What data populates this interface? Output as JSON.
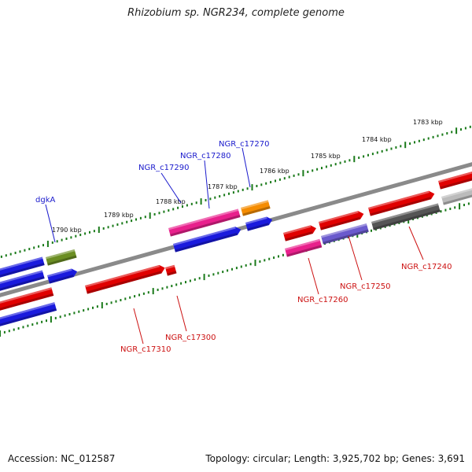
{
  "title": "Rhizobium sp. NGR234, complete genome",
  "footer": {
    "accession": "Accession: NC_012587",
    "topology": "Topology: circular; Length: 3,925,702 bp; Genes: 3,691"
  },
  "colors": {
    "backbone": "#8a8a8a",
    "tick": "#1a7a1a",
    "label_forward": "#1a1acc",
    "label_reverse": "#cc1111"
  },
  "ticks": [
    {
      "label": "1783 kbp"
    },
    {
      "label": "1784 kbp"
    },
    {
      "label": "1785 kbp"
    },
    {
      "label": "1786 kbp"
    },
    {
      "label": "1787 kbp"
    },
    {
      "label": "1788 kbp"
    },
    {
      "label": "1789 kbp"
    },
    {
      "label": "1790 kbp"
    }
  ],
  "genes": [
    {
      "label": "NGR_c17270",
      "strand": "forward",
      "color": "#f58c00"
    },
    {
      "label": "NGR_c17280",
      "strand": "forward",
      "color": "#e8208c"
    },
    {
      "label": "NGR_c17290",
      "strand": "forward",
      "color": "#e8208c"
    },
    {
      "label": "dgkA",
      "strand": "forward",
      "color": "#6b8e23"
    },
    {
      "label": "NGR_c17240",
      "strand": "reverse",
      "color": "#e00000"
    },
    {
      "label": "NGR_c17250",
      "strand": "reverse",
      "color": "#e00000"
    },
    {
      "label": "NGR_c17260",
      "strand": "reverse",
      "color": "#e00000"
    },
    {
      "label": "NGR_c17300",
      "strand": "reverse",
      "color": "#e00000"
    },
    {
      "label": "NGR_c17310",
      "strand": "reverse",
      "color": "#e00000"
    }
  ]
}
